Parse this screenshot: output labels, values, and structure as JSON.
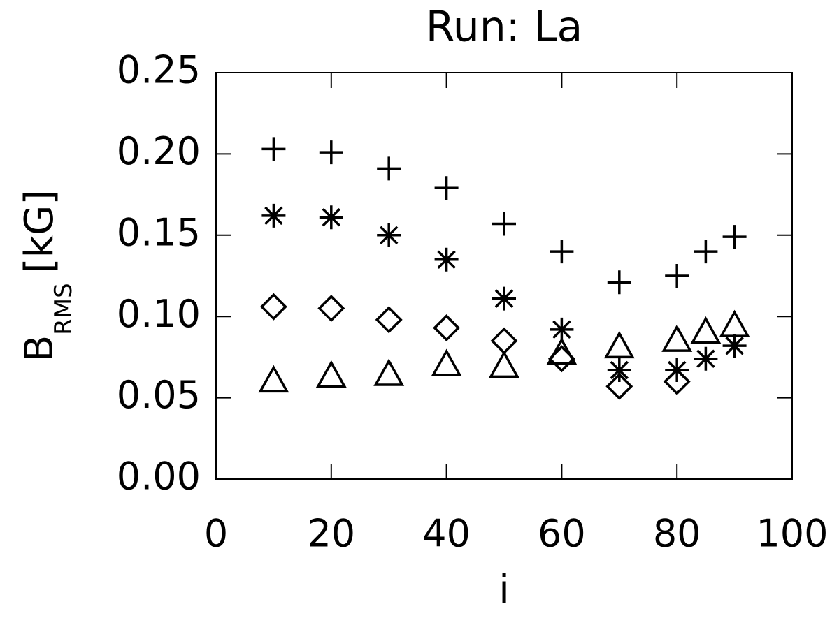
{
  "chart_data": {
    "type": "scatter",
    "title": "Run: La",
    "xlabel": "i",
    "ylabel": "B",
    "ylabel_subscript": "RMS",
    "ylabel_unit": "[kG]",
    "x": [
      10,
      20,
      30,
      40,
      50,
      60,
      70,
      80,
      85,
      90
    ],
    "series": [
      {
        "marker": "plus",
        "color": "#000000",
        "values": [
          0.203,
          0.201,
          0.191,
          0.179,
          0.157,
          0.14,
          0.121,
          0.125,
          0.14,
          0.149
        ]
      },
      {
        "marker": "asterisk",
        "color": "#000000",
        "values": [
          0.162,
          0.161,
          0.15,
          0.135,
          0.111,
          0.092,
          0.067,
          0.067,
          0.074,
          0.082
        ]
      },
      {
        "marker": "diamond",
        "color": "#000000",
        "values": [
          0.106,
          0.105,
          0.098,
          0.093,
          0.085,
          0.074,
          0.057,
          0.06,
          null,
          null
        ]
      },
      {
        "marker": "triangle",
        "color": "#000000",
        "values": [
          0.06,
          0.063,
          0.064,
          0.07,
          0.069,
          0.077,
          0.081,
          0.085,
          0.09,
          0.094
        ]
      }
    ],
    "xlim": [
      0,
      100
    ],
    "xticks": [
      0,
      20,
      40,
      60,
      80,
      100
    ],
    "ylim": [
      0,
      0.25
    ],
    "yticks": [
      {
        "value": 0,
        "label": "0.00"
      },
      0.05,
      {
        "value": 0.1,
        "label": "0.10"
      },
      0.15,
      {
        "value": 0.2,
        "label": "0.20"
      },
      0.25
    ]
  }
}
